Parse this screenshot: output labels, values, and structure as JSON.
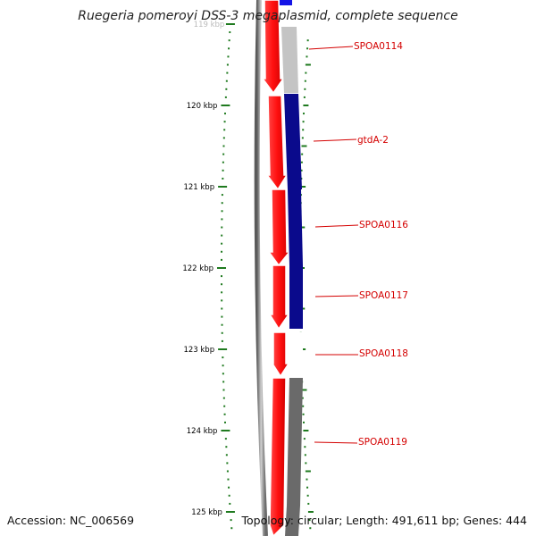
{
  "title": "Ruegeria pomeroyi DSS-3 megaplasmid, complete sequence",
  "accession": "Accession: NC_006569",
  "summary": "Topology: circular; Length: 491,611 bp; Genes: 444",
  "ruler": {
    "partial_label": "119 kbp",
    "major_labels": [
      "120 kbp",
      "121 kbp",
      "122 kbp",
      "123 kbp",
      "124 kbp",
      "125 kbp"
    ]
  },
  "genes": [
    {
      "label": "SPOA0114",
      "color": "#c4c4c4"
    },
    {
      "label": "gtdA-2",
      "color": "#0a0a8c"
    },
    {
      "label": "SPOA0116",
      "color": "#0a0a8c"
    },
    {
      "label": "SPOA0117",
      "color": "#0a0a8c"
    },
    {
      "label": "SPOA0118",
      "color": "#ffffff"
    },
    {
      "label": "SPOA0119",
      "color": "#6a6a6a"
    }
  ],
  "colors": {
    "forward_strand": "#ff1a1a",
    "label_text": "#d40000",
    "ruler_tick": "#1f7a1f",
    "backbone": "#8a8a8a"
  }
}
